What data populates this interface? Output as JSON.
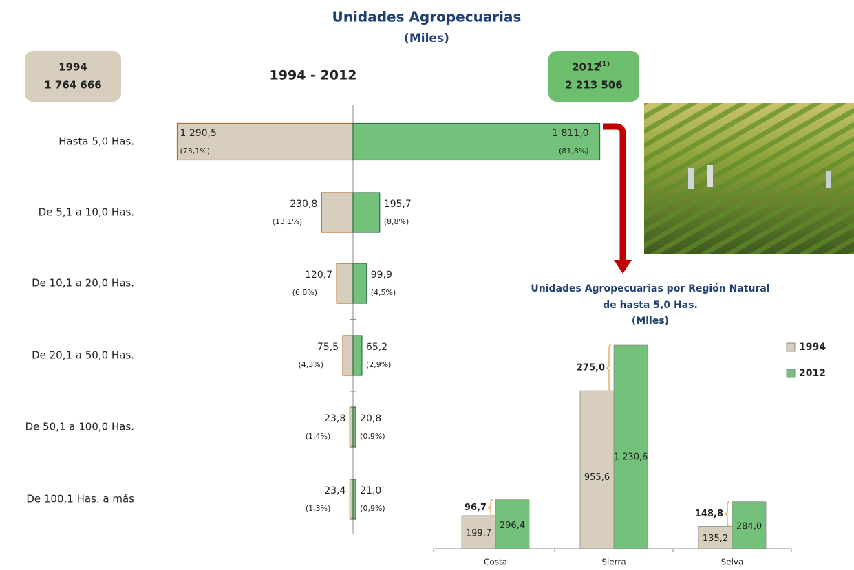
{
  "title": "Unidades Agropecuarias",
  "subtitle": "(Miles)",
  "boxes": [
    {
      "year": "1994",
      "total": "1 764 666"
    },
    {
      "year": "2012",
      "note": "(1)",
      "total": "2 213 506"
    }
  ],
  "chart_data": [
    {
      "type": "butterfly",
      "title": "1994 - 2012",
      "categories": [
        "Hasta 5,0 Has.",
        "De 5,1 a 10,0  Has.",
        "De 10,1 a 20,0  Has.",
        "De 20,1 a 50,0  Has.",
        "De 50,1 a 100,0  Has.",
        "De 100,1 Has. a más"
      ],
      "series": [
        {
          "name": "1994",
          "color": "#d8cebd",
          "stroke": "#b8692a",
          "values": [
            1290.5,
            230.8,
            120.7,
            75.5,
            23.8,
            23.4
          ],
          "value_labels": [
            "1 290,5",
            "230,8",
            "120,7",
            "75,5",
            "23,8",
            "23,4"
          ],
          "share_labels": [
            "(73,1%)",
            "(13,1%)",
            "(6,8%)",
            "(4,3%)",
            "(1,4%)",
            "(1,3%)"
          ]
        },
        {
          "name": "2012",
          "color": "#73c17b",
          "stroke": "#2f6e4a",
          "values": [
            1811.0,
            195.7,
            99.9,
            65.2,
            20.8,
            21.0
          ],
          "value_labels": [
            "1 811,0",
            "195,7",
            "99,9",
            "65,2",
            "20,8",
            "21,0"
          ],
          "share_labels": [
            "(81,8%)",
            "(8,8%)",
            "(4,5%)",
            "(2,9%)",
            "(0,9%)",
            "(0,9%)"
          ]
        }
      ]
    },
    {
      "type": "bar",
      "title": "Unidades Agropecuarias por Región Natural",
      "subtitle": "de hasta 5,0 Has.",
      "unit": "(Miles)",
      "categories": [
        "Costa",
        "Sierra",
        "Selva"
      ],
      "series": [
        {
          "name": "1994",
          "color": "#d8cebd",
          "values": [
            199.7,
            955.6,
            135.2
          ],
          "value_labels": [
            "199,7",
            "955,6",
            "135,2"
          ]
        },
        {
          "name": "2012",
          "color": "#73c17b",
          "values": [
            296.4,
            1230.6,
            284.0
          ],
          "value_labels": [
            "296,4",
            "1 230,6",
            "284,0"
          ]
        }
      ],
      "differences": [
        96.7,
        275.0,
        148.8
      ],
      "difference_labels": [
        "96,7",
        "275,0",
        "148,8"
      ]
    }
  ]
}
